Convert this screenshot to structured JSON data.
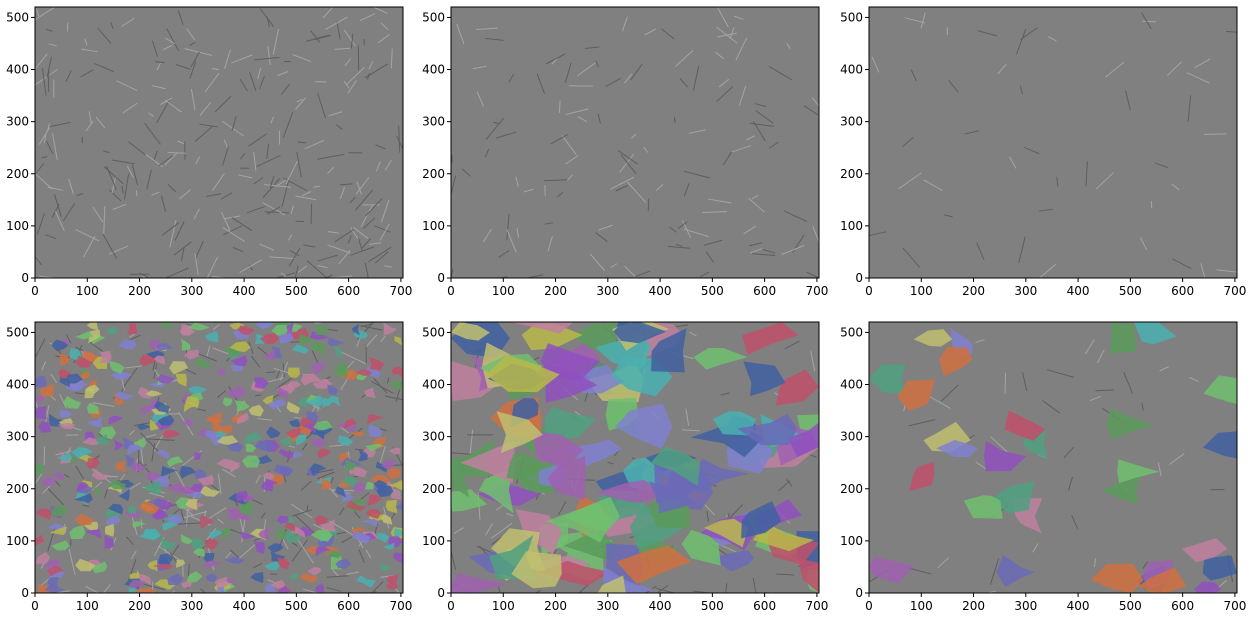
{
  "chart_data": [
    {
      "type": "image",
      "xlim": [
        0,
        704
      ],
      "ylim": [
        520,
        0
      ],
      "xticks": [
        0,
        100,
        200,
        300,
        400,
        500,
        600,
        700
      ],
      "yticks": [
        0,
        100,
        200,
        300,
        400,
        500
      ]
    },
    {
      "type": "image",
      "xlim": [
        0,
        704
      ],
      "ylim": [
        520,
        0
      ],
      "xticks": [
        0,
        100,
        200,
        300,
        400,
        500,
        600,
        700
      ],
      "yticks": [
        0,
        100,
        200,
        300,
        400,
        500
      ]
    },
    {
      "type": "image",
      "xlim": [
        0,
        704
      ],
      "ylim": [
        520,
        0
      ],
      "xticks": [
        0,
        100,
        200,
        300,
        400,
        500,
        600,
        700
      ],
      "yticks": [
        0,
        100,
        200,
        300,
        400,
        500
      ]
    },
    {
      "type": "image",
      "xlim": [
        0,
        704
      ],
      "ylim": [
        520,
        0
      ],
      "xticks": [
        0,
        100,
        200,
        300,
        400,
        500,
        600,
        700
      ],
      "yticks": [
        0,
        100,
        200,
        300,
        400,
        500
      ]
    },
    {
      "type": "image",
      "xlim": [
        0,
        704
      ],
      "ylim": [
        520,
        0
      ],
      "xticks": [
        0,
        100,
        200,
        300,
        400,
        500,
        600,
        700
      ],
      "yticks": [
        0,
        100,
        200,
        300,
        400,
        500
      ]
    },
    {
      "type": "image",
      "xlim": [
        0,
        704
      ],
      "ylim": [
        520,
        0
      ],
      "xticks": [
        0,
        100,
        200,
        300,
        400,
        500,
        600,
        700
      ],
      "yticks": [
        0,
        100,
        200,
        300,
        400,
        500
      ]
    }
  ]
}
